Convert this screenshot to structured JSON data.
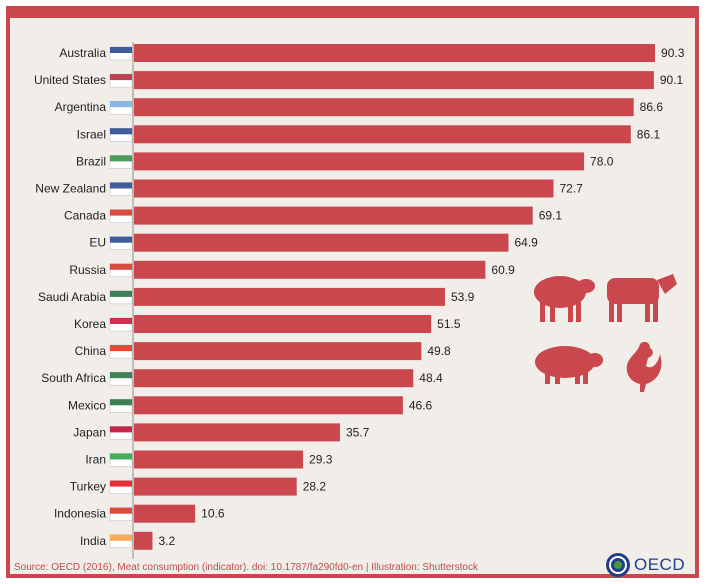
{
  "chart_data": {
    "type": "bar",
    "orientation": "horizontal",
    "categories": [
      "Australia",
      "United States",
      "Argentina",
      "Israel",
      "Brazil",
      "New Zealand",
      "Canada",
      "EU",
      "Russia",
      "Saudi Arabia",
      "Korea",
      "China",
      "South Africa",
      "Mexico",
      "Japan",
      "Iran",
      "Turkey",
      "Indonesia",
      "India"
    ],
    "values": [
      90.3,
      90.1,
      86.6,
      86.1,
      78.0,
      72.7,
      69.1,
      64.9,
      60.9,
      53.9,
      51.5,
      49.8,
      48.4,
      46.6,
      35.7,
      29.3,
      28.2,
      10.6,
      3.2
    ],
    "value_labels": [
      "90.3",
      "90.1",
      "86.6",
      "86.1",
      "78.0",
      "72.7",
      "69.1",
      "64.9",
      "60.9",
      "53.9",
      "51.5",
      "49.8",
      "48.4",
      "46.6",
      "35.7",
      "29.3",
      "28.2",
      "10.6",
      "3.2"
    ],
    "xlim": [
      0,
      100
    ],
    "grid": false,
    "bar_color": "#c9474d"
  },
  "source": "Source: OECD (2016), Meat consumption (indicator). doi: 10.1787/fa290fd0-en | Illustration: Shutterstock",
  "brand": "OECD",
  "colors": {
    "accent": "#c9474d",
    "background": "#f1eeea",
    "brand": "#1f3f8a"
  },
  "icons": [
    "sheep-icon",
    "cow-icon",
    "pig-icon",
    "rooster-icon",
    "oecd-logo-icon"
  ]
}
